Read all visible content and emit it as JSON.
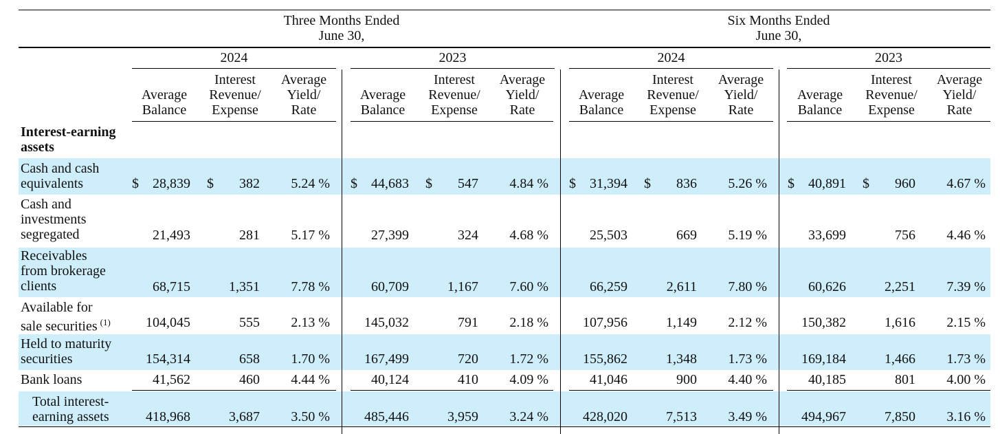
{
  "header": {
    "three_months": "Three Months Ended\nJune 30,",
    "six_months": "Six Months Ended\nJune 30,",
    "years": [
      "2024",
      "2023",
      "2024",
      "2023"
    ],
    "col_avg_balance": "Average\nBalance",
    "col_interest": "Interest\nRevenue/\nExpense",
    "col_yield": "Average\nYield/\nRate"
  },
  "section_title": "Interest-earning\nassets",
  "rows": [
    {
      "label": "Cash and cash\nequivalents",
      "dollar": "$",
      "values": [
        "28,839",
        "382",
        "5.24 %",
        "44,683",
        "547",
        "4.84 %",
        "31,394",
        "836",
        "5.26 %",
        "40,891",
        "960",
        "4.67 %"
      ]
    },
    {
      "label": "Cash and\ninvestments\nsegregated",
      "values": [
        "21,493",
        "281",
        "5.17 %",
        "27,399",
        "324",
        "4.68 %",
        "25,503",
        "669",
        "5.19 %",
        "33,699",
        "756",
        "4.46 %"
      ]
    },
    {
      "label": "Receivables\nfrom brokerage\nclients",
      "values": [
        "68,715",
        "1,351",
        "7.78 %",
        "60,709",
        "1,167",
        "7.60 %",
        "66,259",
        "2,611",
        "7.80 %",
        "60,626",
        "2,251",
        "7.39 %"
      ]
    },
    {
      "label": "Available for\nsale securities",
      "footnote": "(1)",
      "values": [
        "104,045",
        "555",
        "2.13 %",
        "145,032",
        "791",
        "2.18 %",
        "107,956",
        "1,149",
        "2.12 %",
        "150,382",
        "1,616",
        "2.15 %"
      ]
    },
    {
      "label": "Held to maturity\nsecurities",
      "values": [
        "154,314",
        "658",
        "1.70 %",
        "167,499",
        "720",
        "1.72 %",
        "155,862",
        "1,348",
        "1.73 %",
        "169,184",
        "1,466",
        "1.73 %"
      ]
    },
    {
      "label": "Bank loans",
      "values": [
        "41,562",
        "460",
        "4.44 %",
        "40,124",
        "410",
        "4.09 %",
        "41,046",
        "900",
        "4.40 %",
        "40,185",
        "801",
        "4.00 %"
      ]
    },
    {
      "label": "Total interest-\nearning assets",
      "values": [
        "418,968",
        "3,687",
        "3.50 %",
        "485,446",
        "3,959",
        "3.24 %",
        "428,020",
        "7,513",
        "3.49 %",
        "494,967",
        "7,850",
        "3.16 %"
      ]
    }
  ],
  "colors": {
    "band": "#cfeefb"
  }
}
